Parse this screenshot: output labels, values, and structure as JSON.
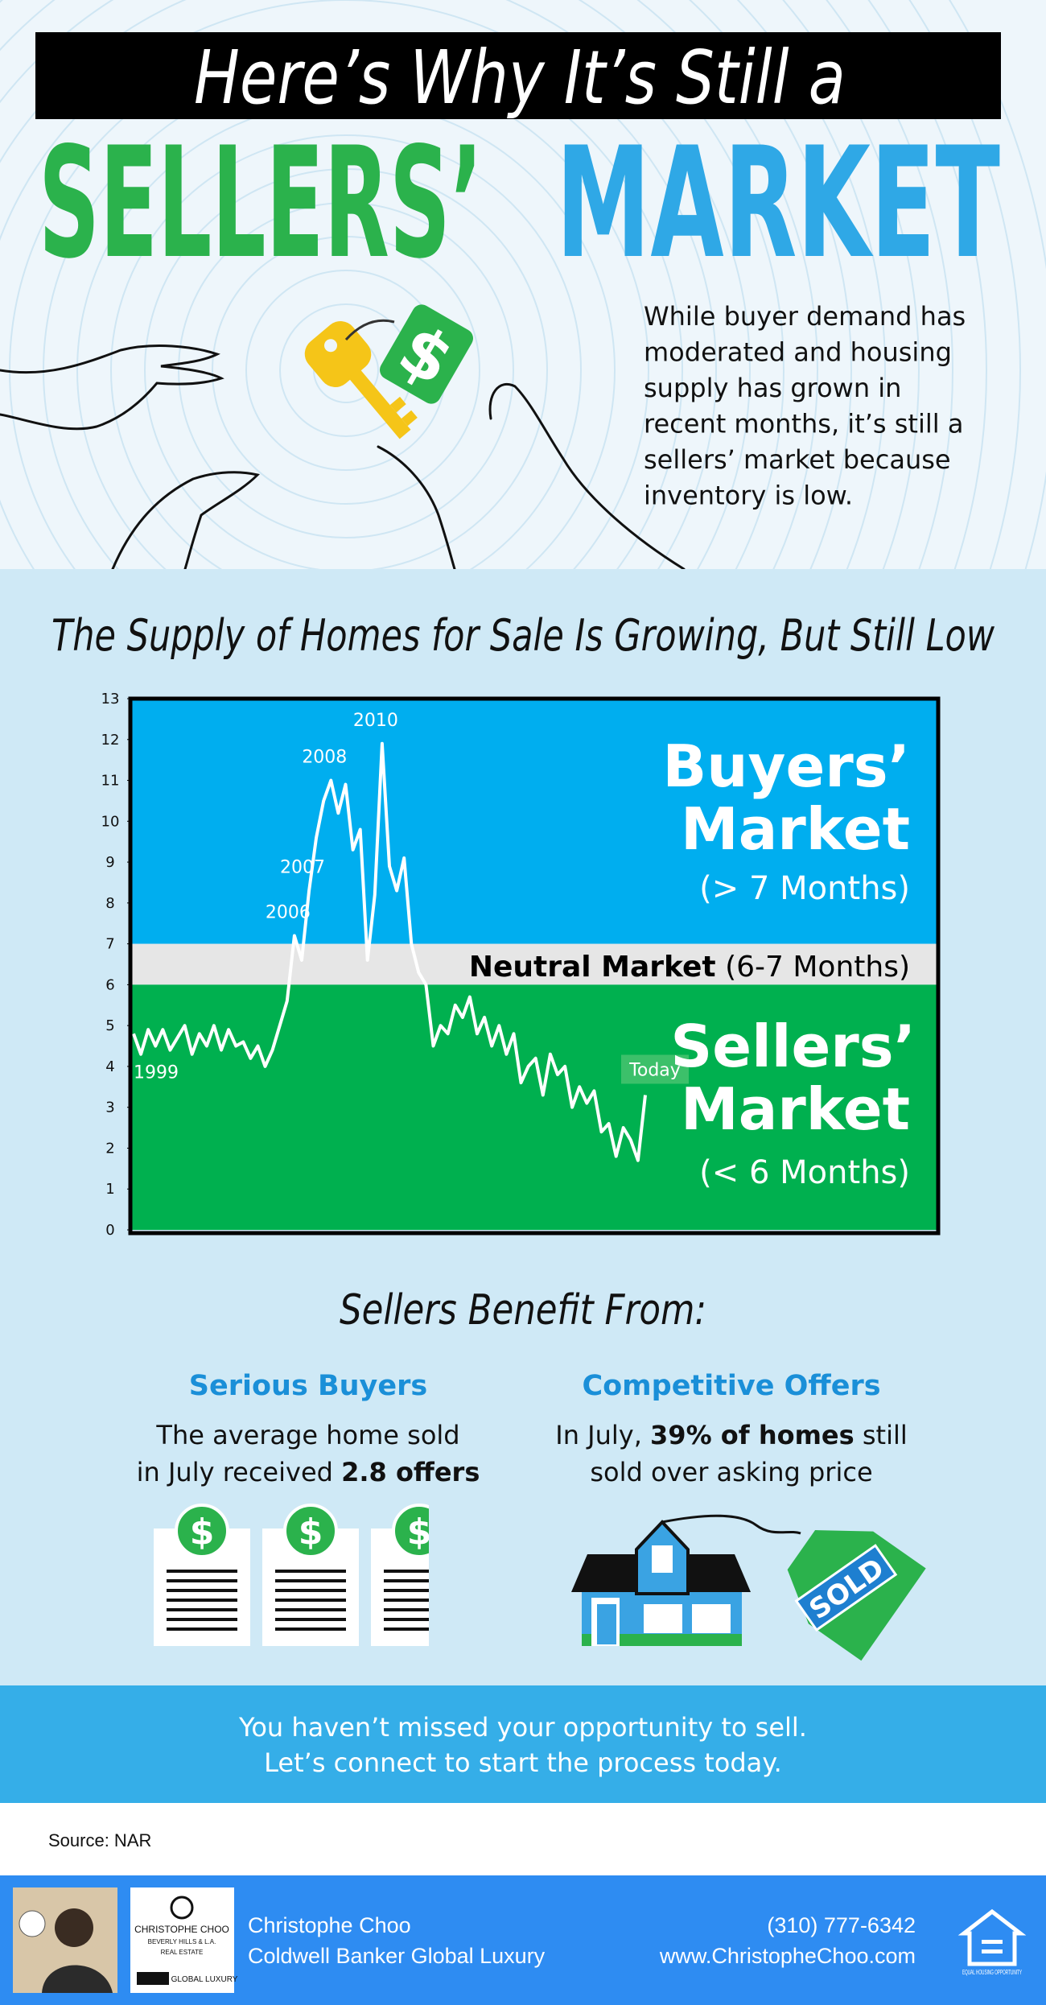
{
  "header": {
    "title_line": "Here’s Why It’s Still a",
    "title_green": "SELLERS’",
    "title_blue": "MARKET",
    "intro": [
      "While buyer demand has",
      "moderated and housing",
      "supply has grown in",
      "recent months, it’s still a",
      "sellers’ market because",
      "inventory is low."
    ],
    "icon_symbol": "$"
  },
  "chart_data": {
    "type": "line",
    "title": "The Supply of Homes for Sale Is Growing, But Still Low",
    "color": "#ffffff",
    "values": [
      4.8,
      4.3,
      4.9,
      4.5,
      4.9,
      4.4,
      4.7,
      5.0,
      4.3,
      4.8,
      4.5,
      5.0,
      4.4,
      4.9,
      4.5,
      4.6,
      4.2,
      4.5,
      4.0,
      4.4,
      5.0,
      5.6,
      7.2,
      6.6,
      8.3,
      9.6,
      10.5,
      11.0,
      10.2,
      10.9,
      9.3,
      9.8,
      6.6,
      8.2,
      11.9,
      8.9,
      8.3,
      9.1,
      7.0,
      6.3,
      6.0,
      4.5,
      5.0,
      4.8,
      5.5,
      5.2,
      5.7,
      4.8,
      5.2,
      4.5,
      5.0,
      4.3,
      4.8,
      3.6,
      4.0,
      4.2,
      3.3,
      4.3,
      3.8,
      4.0,
      3.0,
      3.5,
      3.1,
      3.4,
      2.4,
      2.6,
      1.8,
      2.5,
      2.2,
      1.7,
      3.3
    ],
    "categories": [
      "1999",
      null,
      null,
      null,
      null,
      null,
      null,
      null,
      null,
      null,
      null,
      null,
      null,
      null,
      null,
      null,
      null,
      null,
      null,
      null,
      null,
      null,
      "2006",
      null,
      "2007",
      null,
      null,
      "2008",
      null,
      null,
      null,
      null,
      null,
      null,
      "2010",
      null,
      null,
      null,
      null,
      null,
      null,
      null,
      null,
      null,
      null,
      null,
      null,
      null,
      null,
      null,
      null,
      null,
      null,
      null,
      null,
      null,
      null,
      null,
      null,
      null,
      null,
      null,
      null,
      null,
      null,
      null,
      null,
      null,
      null,
      null,
      "Today"
    ],
    "ylim": [
      0,
      13
    ],
    "yticks": [
      0,
      1,
      2,
      3,
      4,
      5,
      6,
      7,
      8,
      9,
      10,
      11,
      12,
      13
    ],
    "bands": [
      {
        "from": 7,
        "to": 13,
        "color": "#00aeef",
        "title": [
          "Buyers’",
          "Market"
        ],
        "note": "(> 7 Months)"
      },
      {
        "from": 6,
        "to": 7,
        "color": "#e6e6e6",
        "title": [
          "Neutral Market"
        ],
        "note": "(6-7 Months)"
      },
      {
        "from": 0,
        "to": 6,
        "color": "#00b04f",
        "title": [
          "Sellers’",
          "Market"
        ],
        "note": "(< 6 Months)"
      }
    ]
  },
  "benefits": {
    "title": "Sellers Benefit From:",
    "items": [
      {
        "heading": "Serious Buyers",
        "lines": [
          [
            {
              "text": "The average home sold",
              "bold": false
            }
          ],
          [
            {
              "text": "in July received ",
              "bold": false
            },
            {
              "text": "2.8 offers",
              "bold": true
            }
          ]
        ]
      },
      {
        "heading": "Competitive Offers",
        "lines": [
          [
            {
              "text": "In July, ",
              "bold": false
            },
            {
              "text": "39% of homes",
              "bold": true
            },
            {
              "text": " still",
              "bold": false
            }
          ],
          [
            {
              "text": "sold over asking price",
              "bold": false
            }
          ]
        ]
      }
    ],
    "sold_tag": "SOLD"
  },
  "cta": [
    "You haven’t missed your opportunity to sell.",
    "Let’s connect to start the process today."
  ],
  "source": "Source: NAR",
  "footer": {
    "name": "Christophe Choo",
    "company": "Coldwell Banker Global Luxury",
    "phone": "(310) 777-6342",
    "website": "www.ChristopheChoo.com",
    "logo": [
      "CHRISTOPHE CHOO",
      "BEVERLY HILLS & L.A.",
      "REAL ESTATE",
      "GLOBAL LUXURY"
    ],
    "equal_housing": "EQUAL HOUSING OPPORTUNITY"
  }
}
